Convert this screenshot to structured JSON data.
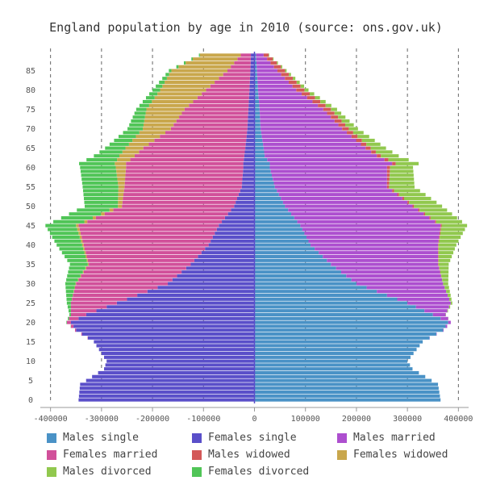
{
  "chart_data": {
    "type": "bar",
    "orientation": "horizontal",
    "stacked": true,
    "title": "England population by age in 2010 (source: ons.gov.uk)",
    "xlabel": "",
    "ylabel": "",
    "xlim": [
      -420000,
      420000
    ],
    "ylim": [
      0,
      89
    ],
    "x_ticks": [
      -400000,
      -300000,
      -200000,
      -100000,
      0,
      100000,
      200000,
      300000,
      400000
    ],
    "x_tick_labels": [
      "-400000",
      "-300000",
      "-200000",
      "-100000",
      "0",
      "100000",
      "200000",
      "300000",
      "400000"
    ],
    "y_ticks": [
      0,
      5,
      10,
      15,
      20,
      25,
      30,
      35,
      40,
      45,
      50,
      55,
      60,
      65,
      70,
      75,
      80,
      85
    ],
    "y_tick_labels": [
      "0",
      "5",
      "10",
      "15",
      "20",
      "25",
      "30",
      "35",
      "40",
      "45",
      "50",
      "55",
      "60",
      "65",
      "70",
      "75",
      "80",
      "85"
    ],
    "grid": "vertical dashed",
    "legend_position": "bottom",
    "age_anchor_points": {
      "ages": [
        0,
        4,
        8,
        10,
        15,
        18,
        20,
        22,
        25,
        30,
        35,
        40,
        45,
        50,
        55,
        60,
        61,
        63,
        65,
        70,
        75,
        80,
        85,
        89
      ],
      "males_single": [
        365000,
        360000,
        310000,
        300000,
        330000,
        370000,
        380000,
        350000,
        300000,
        200000,
        150000,
        110000,
        90000,
        60000,
        40000,
        30000,
        30000,
        20000,
        18000,
        12000,
        10000,
        7000,
        5000,
        3000
      ],
      "males_married": [
        0,
        0,
        0,
        0,
        0,
        1000,
        5000,
        25000,
        85000,
        170000,
        210000,
        250000,
        275000,
        250000,
        220000,
        230000,
        240000,
        220000,
        200000,
        160000,
        125000,
        75000,
        40000,
        15000
      ],
      "males_widowed": [
        0,
        0,
        0,
        0,
        0,
        0,
        0,
        0,
        0,
        0,
        1000,
        1000,
        2000,
        3000,
        4000,
        6000,
        7000,
        8000,
        10000,
        13000,
        15000,
        16000,
        15000,
        10000
      ],
      "males_divorced": [
        0,
        0,
        0,
        0,
        0,
        0,
        0,
        500,
        3000,
        10000,
        20000,
        35000,
        50000,
        55000,
        50000,
        45000,
        45000,
        35000,
        30000,
        18000,
        12000,
        8000,
        3000,
        1000
      ],
      "females_single": [
        345000,
        342000,
        295000,
        290000,
        315000,
        350000,
        360000,
        330000,
        270000,
        170000,
        125000,
        90000,
        70000,
        40000,
        25000,
        22000,
        22000,
        20000,
        18000,
        14000,
        12000,
        10000,
        8000,
        7000
      ],
      "females_married": [
        0,
        0,
        0,
        0,
        0,
        2000,
        8000,
        30000,
        90000,
        180000,
        200000,
        245000,
        275000,
        220000,
        230000,
        230000,
        230000,
        215000,
        200000,
        150000,
        125000,
        85000,
        45000,
        20000
      ],
      "females_widowed": [
        0,
        0,
        0,
        0,
        0,
        0,
        0,
        0,
        0,
        1000,
        2000,
        3000,
        5000,
        8000,
        12000,
        20000,
        22000,
        30000,
        35000,
        55000,
        75000,
        90000,
        110000,
        80000
      ],
      "females_divorced": [
        0,
        0,
        0,
        0,
        0,
        0,
        1000,
        3000,
        8000,
        20000,
        35000,
        50000,
        60000,
        65000,
        70000,
        70000,
        70000,
        50000,
        40000,
        30000,
        20000,
        15000,
        5000,
        2000
      ]
    },
    "series": [
      {
        "name": "Males single",
        "key": "males_single",
        "side": "right",
        "color": "#4a92c6"
      },
      {
        "name": "Females single",
        "key": "females_single",
        "side": "left",
        "color": "#5a4fc9"
      },
      {
        "name": "Males married",
        "key": "males_married",
        "side": "right",
        "color": "#ad4fcf"
      },
      {
        "name": "Females married",
        "key": "females_married",
        "side": "left",
        "color": "#d1509a"
      },
      {
        "name": "Males widowed",
        "key": "males_widowed",
        "side": "right",
        "color": "#d35858"
      },
      {
        "name": "Females widowed",
        "key": "females_widowed",
        "side": "left",
        "color": "#c9a74c"
      },
      {
        "name": "Males divorced",
        "key": "males_divorced",
        "side": "right",
        "color": "#91c84e"
      },
      {
        "name": "Females divorced",
        "key": "females_divorced",
        "side": "left",
        "color": "#50c557"
      }
    ]
  }
}
